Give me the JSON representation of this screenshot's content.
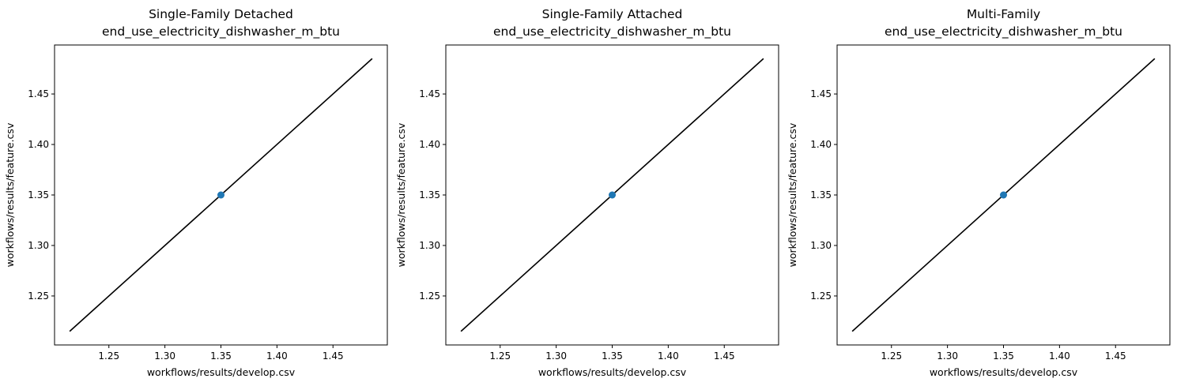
{
  "chart_data": [
    {
      "type": "scatter",
      "title": "Single-Family Detached",
      "subtitle": "end_use_electricity_dishwasher_m_btu",
      "xlabel": "workflows/results/develop.csv",
      "ylabel": "workflows/results/feature.csv",
      "xlim": [
        1.2015,
        1.4985
      ],
      "ylim": [
        1.2015,
        1.4985
      ],
      "xticks": [
        1.25,
        1.3,
        1.35,
        1.4,
        1.45
      ],
      "yticks": [
        1.25,
        1.3,
        1.35,
        1.4,
        1.45
      ],
      "tick_labels": [
        "1.25",
        "1.30",
        "1.35",
        "1.40",
        "1.45"
      ],
      "points": [
        {
          "x": 1.35,
          "y": 1.35
        }
      ],
      "reference_line": {
        "x": [
          1.215,
          1.485
        ],
        "y": [
          1.215,
          1.485
        ]
      },
      "grid": false
    },
    {
      "type": "scatter",
      "title": "Single-Family Attached",
      "subtitle": "end_use_electricity_dishwasher_m_btu",
      "xlabel": "workflows/results/develop.csv",
      "ylabel": "workflows/results/feature.csv",
      "xlim": [
        1.2015,
        1.4985
      ],
      "ylim": [
        1.2015,
        1.4985
      ],
      "xticks": [
        1.25,
        1.3,
        1.35,
        1.4,
        1.45
      ],
      "yticks": [
        1.25,
        1.3,
        1.35,
        1.4,
        1.45
      ],
      "tick_labels": [
        "1.25",
        "1.30",
        "1.35",
        "1.40",
        "1.45"
      ],
      "points": [
        {
          "x": 1.35,
          "y": 1.35
        }
      ],
      "reference_line": {
        "x": [
          1.215,
          1.485
        ],
        "y": [
          1.215,
          1.485
        ]
      },
      "grid": false
    },
    {
      "type": "scatter",
      "title": "Multi-Family",
      "subtitle": "end_use_electricity_dishwasher_m_btu",
      "xlabel": "workflows/results/develop.csv",
      "ylabel": "workflows/results/feature.csv",
      "xlim": [
        1.2015,
        1.4985
      ],
      "ylim": [
        1.2015,
        1.4985
      ],
      "xticks": [
        1.25,
        1.3,
        1.35,
        1.4,
        1.45
      ],
      "yticks": [
        1.25,
        1.3,
        1.35,
        1.4,
        1.45
      ],
      "tick_labels": [
        "1.25",
        "1.30",
        "1.35",
        "1.40",
        "1.45"
      ],
      "points": [
        {
          "x": 1.35,
          "y": 1.35
        }
      ],
      "reference_line": {
        "x": [
          1.215,
          1.485
        ],
        "y": [
          1.215,
          1.485
        ]
      },
      "grid": false
    }
  ],
  "colors": {
    "point": "#1f77b4",
    "reference_line": "#000000",
    "axes": "#000000"
  }
}
